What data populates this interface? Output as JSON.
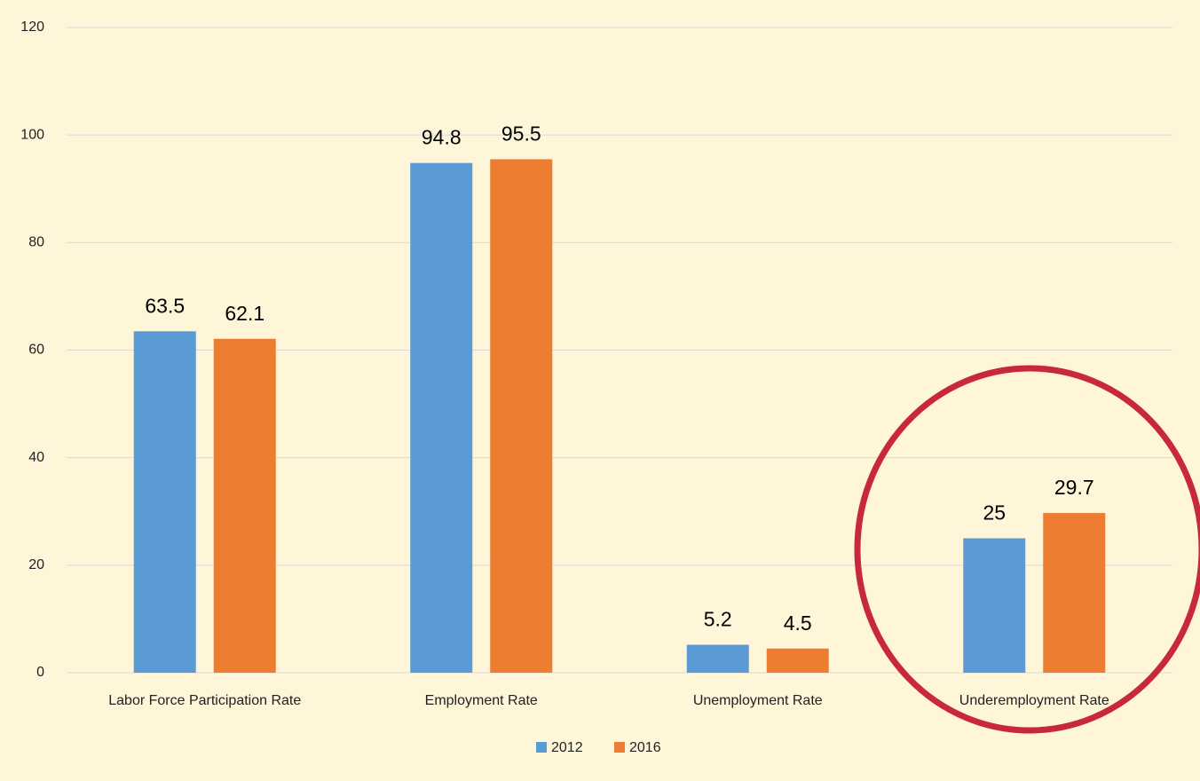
{
  "chart_data": {
    "type": "bar",
    "categories": [
      "Labor Force Participation Rate",
      "Employment Rate",
      "Unemployment Rate",
      "Underemployment Rate"
    ],
    "series": [
      {
        "name": "2012",
        "color": "#5b9bd5",
        "values": [
          63.5,
          94.8,
          5.2,
          25
        ]
      },
      {
        "name": "2016",
        "color": "#ed7d31",
        "values": [
          62.1,
          95.5,
          4.5,
          29.7
        ]
      }
    ],
    "ylim": [
      0,
      120
    ],
    "yticks": [
      0,
      20,
      40,
      60,
      80,
      100,
      120
    ],
    "grid": true,
    "legend": "bottom"
  }
}
